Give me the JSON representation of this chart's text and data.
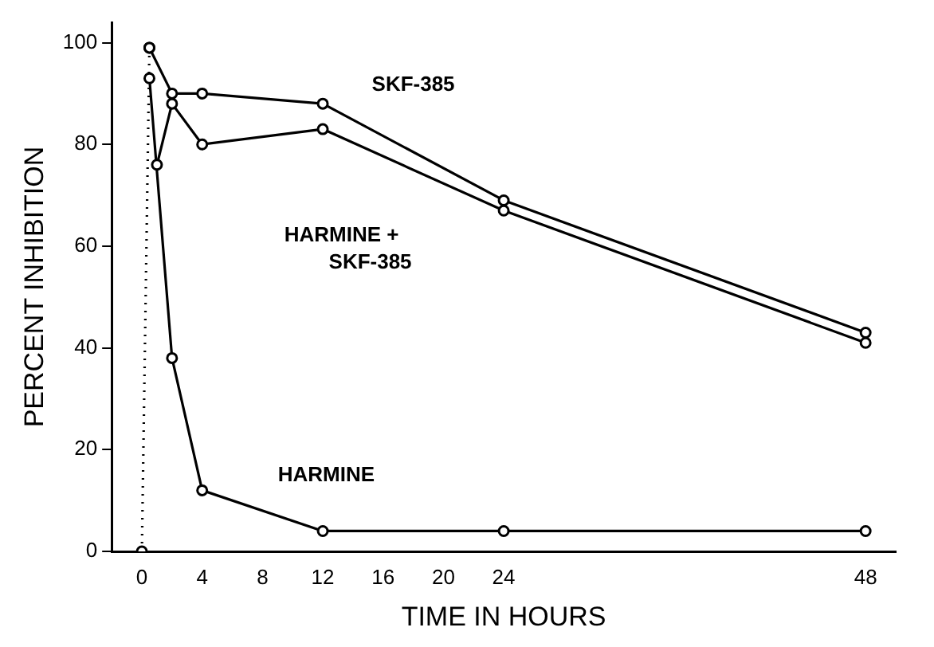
{
  "chart_data": {
    "type": "line",
    "xlabel": "TIME IN HOURS",
    "ylabel": "PERCENT INHIBITION",
    "xlim": [
      -2,
      50
    ],
    "xticks": [
      0,
      4,
      8,
      12,
      16,
      20,
      24,
      48
    ],
    "ylim": [
      0,
      104
    ],
    "yticks": [
      0,
      20,
      40,
      60,
      80,
      100
    ],
    "grid": false,
    "legend": false,
    "marker": "circle",
    "series": [
      {
        "color": "#000000",
        "x": [
          0.5,
          2,
          4,
          12,
          24,
          48
        ],
        "values": [
          99,
          90,
          90,
          88,
          69,
          43
        ]
      },
      {
        "color": "#000000",
        "x": [
          1,
          2,
          4,
          12,
          24,
          48
        ],
        "values": [
          76,
          88,
          80,
          83,
          67,
          41
        ]
      },
      {
        "color": "#000000",
        "x": [
          0.5,
          2,
          4,
          12,
          24,
          48
        ],
        "values": [
          93,
          38,
          12,
          4,
          4,
          4
        ]
      },
      {
        "color": "#000000",
        "x": [
          0,
          0.5
        ],
        "values": [
          0,
          99
        ],
        "line_style": "dotted"
      }
    ],
    "annotations": [
      "SKF-385",
      "HARMINE +\nSKF-385",
      "HARMINE"
    ]
  }
}
